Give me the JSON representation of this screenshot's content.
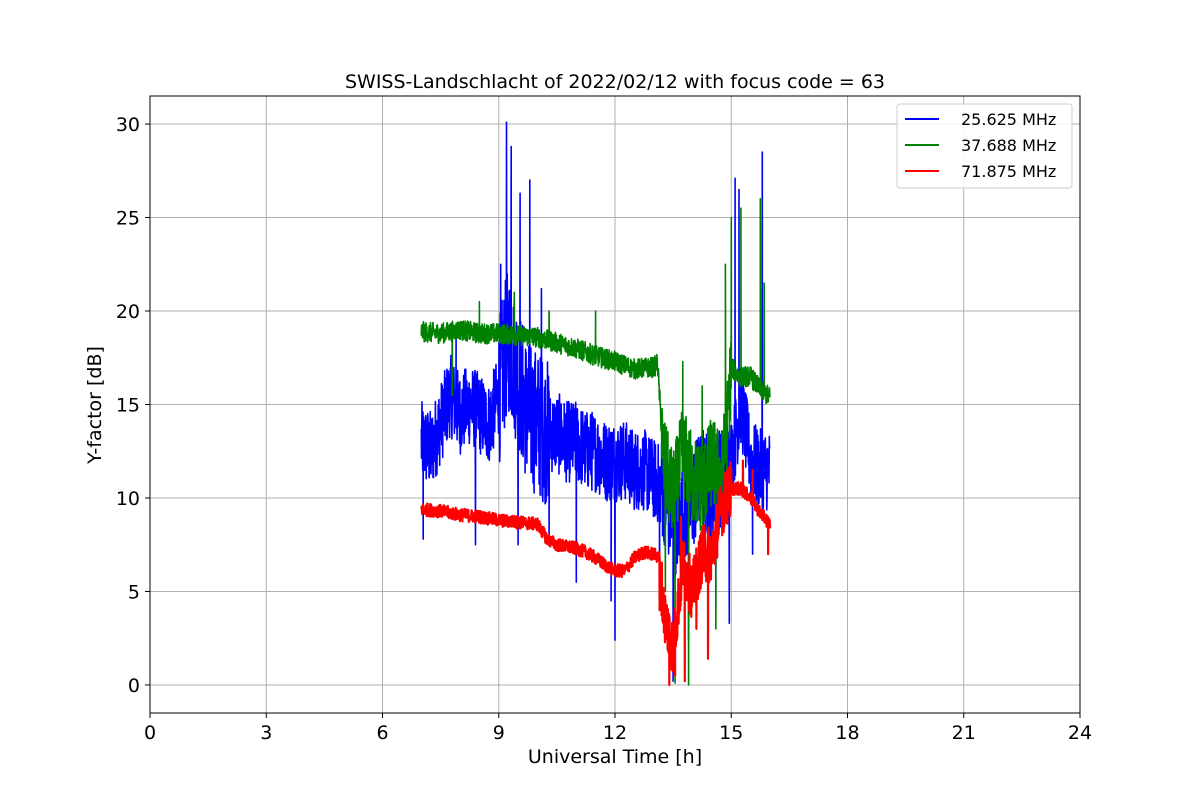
{
  "chart_data": {
    "type": "line",
    "title": "SWISS-Landschlacht of 2022/02/12 with focus code = 63",
    "xlabel": "Universal Time [h]",
    "ylabel": "Y-factor [dB]",
    "xlim": [
      0,
      24
    ],
    "ylim": [
      -1.5,
      31.5
    ],
    "xticks": [
      0,
      3,
      6,
      9,
      12,
      15,
      18,
      21,
      24
    ],
    "yticks": [
      0,
      5,
      10,
      15,
      20,
      25,
      30
    ],
    "grid": true,
    "legend_position": "top-right",
    "series": [
      {
        "name": "25.625 MHz",
        "color": "#0000ff",
        "x": [
          7.0,
          7.25,
          7.5,
          7.75,
          8.0,
          8.25,
          8.5,
          8.75,
          9.0,
          9.1,
          9.25,
          9.5,
          9.75,
          10.0,
          10.25,
          10.5,
          10.75,
          11.0,
          11.25,
          11.5,
          11.75,
          12.0,
          12.25,
          12.5,
          12.75,
          13.0,
          13.25,
          13.5,
          13.75,
          14.0,
          14.25,
          14.5,
          14.75,
          15.0,
          15.25,
          15.5,
          15.75,
          16.0
        ],
        "y": [
          13.0,
          12.5,
          14.0,
          15.5,
          14.5,
          15.0,
          14.5,
          14.0,
          15.5,
          17.0,
          18.5,
          16.5,
          14.5,
          14.0,
          13.5,
          13.5,
          13.0,
          13.0,
          12.5,
          12.5,
          12.0,
          12.0,
          12.0,
          11.5,
          11.5,
          11.0,
          10.5,
          8.5,
          9.0,
          10.0,
          11.0,
          10.5,
          11.0,
          12.0,
          15.0,
          12.0,
          11.5,
          11.5
        ],
        "peaks": [
          {
            "x": 7.05,
            "y": 7.8
          },
          {
            "x": 7.9,
            "y": 18.6
          },
          {
            "x": 8.4,
            "y": 7.5
          },
          {
            "x": 9.05,
            "y": 22.5
          },
          {
            "x": 9.2,
            "y": 30.1
          },
          {
            "x": 9.32,
            "y": 28.8
          },
          {
            "x": 9.5,
            "y": 7.5
          },
          {
            "x": 9.55,
            "y": 26.3
          },
          {
            "x": 9.8,
            "y": 27.0
          },
          {
            "x": 10.1,
            "y": 21.2
          },
          {
            "x": 10.3,
            "y": 7.5
          },
          {
            "x": 11.0,
            "y": 5.5
          },
          {
            "x": 11.9,
            "y": 4.5
          },
          {
            "x": 12.0,
            "y": 2.4
          },
          {
            "x": 13.15,
            "y": 4.1
          },
          {
            "x": 13.5,
            "y": 0.2
          },
          {
            "x": 13.9,
            "y": 2.4
          },
          {
            "x": 14.4,
            "y": 5.0
          },
          {
            "x": 14.6,
            "y": 4.1
          },
          {
            "x": 14.95,
            "y": 3.3
          },
          {
            "x": 15.1,
            "y": 27.1
          },
          {
            "x": 15.2,
            "y": 26.5
          },
          {
            "x": 15.55,
            "y": 7.0
          },
          {
            "x": 15.8,
            "y": 28.5
          }
        ]
      },
      {
        "name": "37.688 MHz",
        "color": "#008000",
        "x": [
          7.0,
          7.5,
          8.0,
          8.5,
          9.0,
          9.5,
          10.0,
          10.5,
          11.0,
          11.5,
          12.0,
          12.5,
          13.0,
          13.1,
          13.25,
          13.5,
          13.75,
          14.0,
          14.25,
          14.5,
          14.75,
          14.9,
          15.0,
          15.2,
          15.5,
          15.75,
          16.0
        ],
        "y": [
          18.9,
          18.8,
          19.0,
          18.8,
          18.8,
          18.7,
          18.6,
          18.3,
          18.0,
          17.6,
          17.3,
          16.9,
          17.0,
          17.2,
          12.0,
          10.0,
          12.5,
          11.0,
          10.5,
          12.0,
          11.0,
          14.0,
          17.0,
          16.5,
          16.5,
          15.8,
          15.4
        ],
        "peaks": [
          {
            "x": 7.8,
            "y": 15.5
          },
          {
            "x": 8.5,
            "y": 20.5
          },
          {
            "x": 9.4,
            "y": 21.0
          },
          {
            "x": 10.3,
            "y": 20.0
          },
          {
            "x": 11.5,
            "y": 20.0
          },
          {
            "x": 13.3,
            "y": 5.0
          },
          {
            "x": 13.55,
            "y": 0.1
          },
          {
            "x": 13.75,
            "y": 17.3
          },
          {
            "x": 13.9,
            "y": 0.0
          },
          {
            "x": 14.25,
            "y": 16.0
          },
          {
            "x": 14.6,
            "y": 3.0
          },
          {
            "x": 14.85,
            "y": 22.5
          },
          {
            "x": 15.0,
            "y": 25.0
          },
          {
            "x": 15.25,
            "y": 25.5
          },
          {
            "x": 15.75,
            "y": 26.0
          },
          {
            "x": 15.85,
            "y": 21.5
          }
        ]
      },
      {
        "name": "71.875 MHz",
        "color": "#ff0000",
        "x": [
          7.0,
          7.5,
          8.0,
          8.5,
          9.0,
          9.5,
          10.0,
          10.25,
          10.5,
          10.75,
          11.0,
          11.25,
          11.5,
          11.75,
          12.0,
          12.25,
          12.5,
          12.75,
          13.0,
          13.15,
          13.25,
          13.5,
          13.75,
          14.0,
          14.25,
          14.5,
          14.75,
          15.0,
          15.25,
          15.5,
          15.75,
          16.0
        ],
        "y": [
          9.4,
          9.3,
          9.1,
          9.0,
          8.8,
          8.7,
          8.6,
          7.8,
          7.5,
          7.4,
          7.3,
          7.1,
          6.8,
          6.4,
          6.1,
          6.1,
          6.8,
          7.1,
          7.0,
          6.8,
          4.0,
          2.0,
          6.5,
          5.0,
          7.0,
          7.0,
          9.5,
          10.5,
          10.5,
          10.0,
          9.2,
          8.6
        ],
        "peaks": [
          {
            "x": 13.15,
            "y": 4.0
          },
          {
            "x": 13.4,
            "y": 0.0
          },
          {
            "x": 13.55,
            "y": 0.5
          },
          {
            "x": 13.7,
            "y": 9.0
          },
          {
            "x": 13.8,
            "y": 0.2
          },
          {
            "x": 14.1,
            "y": 3.0
          },
          {
            "x": 14.3,
            "y": 8.5
          },
          {
            "x": 14.4,
            "y": 1.4
          },
          {
            "x": 14.9,
            "y": 11.5
          },
          {
            "x": 15.3,
            "y": 12.0
          },
          {
            "x": 15.55,
            "y": 11.5
          },
          {
            "x": 15.95,
            "y": 7.0
          }
        ]
      }
    ]
  }
}
